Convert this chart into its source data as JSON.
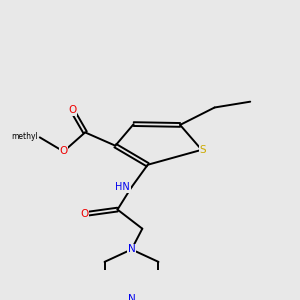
{
  "background_color": "#e8e8e8",
  "atom_colors": {
    "N": "#0000ee",
    "O": "#ee0000",
    "S": "#ccaa00",
    "C": "#000000"
  },
  "figsize": [
    3.0,
    3.0
  ],
  "dpi": 100
}
